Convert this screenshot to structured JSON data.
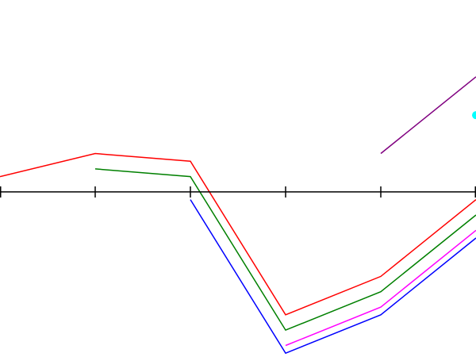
{
  "chart_data": {
    "type": "line",
    "title": "",
    "xlabel": "",
    "ylabel": "",
    "x": [
      0,
      1,
      2,
      3,
      4,
      5
    ],
    "xlim": [
      0,
      5
    ],
    "ylim": [
      -4.3,
      5.0
    ],
    "grid": false,
    "legend": "none",
    "axis_color": "#000000",
    "series": [
      {
        "color": "#ff0000",
        "values": [
          0.4,
          1.0,
          0.8,
          -3.2,
          -2.2,
          -0.2
        ]
      },
      {
        "color": "#008000",
        "values": [
          null,
          0.6,
          0.4,
          -3.6,
          -2.6,
          -0.6
        ]
      },
      {
        "color": "#0000ff",
        "values": [
          null,
          null,
          -0.2,
          -4.2,
          -3.2,
          -1.2
        ]
      },
      {
        "color": "#ff00ff",
        "values": [
          null,
          null,
          null,
          -4.0,
          -3.0,
          -1.0
        ]
      },
      {
        "color": "#800080",
        "values": [
          null,
          null,
          null,
          null,
          1.0,
          3.0
        ]
      }
    ],
    "points": [
      {
        "color": "#00ffff",
        "x": 5,
        "y": 2.0
      }
    ]
  }
}
